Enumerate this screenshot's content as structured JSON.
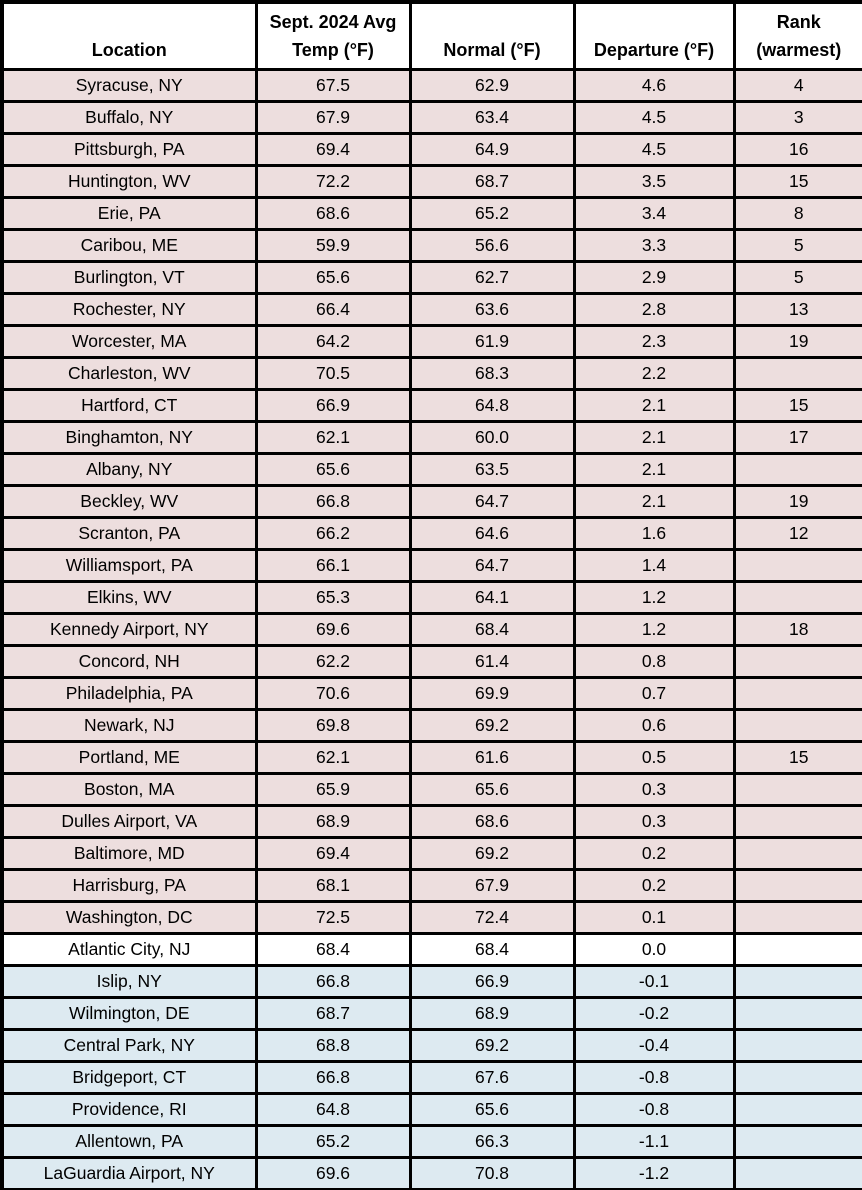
{
  "colors": {
    "warm_row_bg": "#EDDEDE",
    "neutral_row_bg": "#FFFFFF",
    "cool_row_bg": "#DDEAF1",
    "header_bg": "#FFFFFF",
    "border": "#000000",
    "text": "#000000"
  },
  "chart_data": {
    "type": "table",
    "header_labels": [
      "Location",
      "Sept. 2024 Avg\nTemp (°F)",
      "Normal (°F)",
      "Departure (°F)",
      "Rank\n(warmest)"
    ],
    "rows": [
      {
        "location": "Syracuse, NY",
        "avg_temp": "67.5",
        "normal": "62.9",
        "departure": "4.6",
        "rank": "4",
        "tone": "warm"
      },
      {
        "location": "Buffalo, NY",
        "avg_temp": "67.9",
        "normal": "63.4",
        "departure": "4.5",
        "rank": "3",
        "tone": "warm"
      },
      {
        "location": "Pittsburgh, PA",
        "avg_temp": "69.4",
        "normal": "64.9",
        "departure": "4.5",
        "rank": "16",
        "tone": "warm"
      },
      {
        "location": "Huntington, WV",
        "avg_temp": "72.2",
        "normal": "68.7",
        "departure": "3.5",
        "rank": "15",
        "tone": "warm"
      },
      {
        "location": "Erie, PA",
        "avg_temp": "68.6",
        "normal": "65.2",
        "departure": "3.4",
        "rank": "8",
        "tone": "warm"
      },
      {
        "location": "Caribou, ME",
        "avg_temp": "59.9",
        "normal": "56.6",
        "departure": "3.3",
        "rank": "5",
        "tone": "warm"
      },
      {
        "location": "Burlington, VT",
        "avg_temp": "65.6",
        "normal": "62.7",
        "departure": "2.9",
        "rank": "5",
        "tone": "warm"
      },
      {
        "location": "Rochester, NY",
        "avg_temp": "66.4",
        "normal": "63.6",
        "departure": "2.8",
        "rank": "13",
        "tone": "warm"
      },
      {
        "location": "Worcester, MA",
        "avg_temp": "64.2",
        "normal": "61.9",
        "departure": "2.3",
        "rank": "19",
        "tone": "warm"
      },
      {
        "location": "Charleston, WV",
        "avg_temp": "70.5",
        "normal": "68.3",
        "departure": "2.2",
        "rank": "",
        "tone": "warm"
      },
      {
        "location": "Hartford, CT",
        "avg_temp": "66.9",
        "normal": "64.8",
        "departure": "2.1",
        "rank": "15",
        "tone": "warm"
      },
      {
        "location": "Binghamton, NY",
        "avg_temp": "62.1",
        "normal": "60.0",
        "departure": "2.1",
        "rank": "17",
        "tone": "warm"
      },
      {
        "location": "Albany, NY",
        "avg_temp": "65.6",
        "normal": "63.5",
        "departure": "2.1",
        "rank": "",
        "tone": "warm"
      },
      {
        "location": "Beckley, WV",
        "avg_temp": "66.8",
        "normal": "64.7",
        "departure": "2.1",
        "rank": "19",
        "tone": "warm"
      },
      {
        "location": "Scranton, PA",
        "avg_temp": "66.2",
        "normal": "64.6",
        "departure": "1.6",
        "rank": "12",
        "tone": "warm"
      },
      {
        "location": "Williamsport, PA",
        "avg_temp": "66.1",
        "normal": "64.7",
        "departure": "1.4",
        "rank": "",
        "tone": "warm"
      },
      {
        "location": "Elkins, WV",
        "avg_temp": "65.3",
        "normal": "64.1",
        "departure": "1.2",
        "rank": "",
        "tone": "warm"
      },
      {
        "location": "Kennedy Airport, NY",
        "avg_temp": "69.6",
        "normal": "68.4",
        "departure": "1.2",
        "rank": "18",
        "tone": "warm"
      },
      {
        "location": "Concord, NH",
        "avg_temp": "62.2",
        "normal": "61.4",
        "departure": "0.8",
        "rank": "",
        "tone": "warm"
      },
      {
        "location": "Philadelphia, PA",
        "avg_temp": "70.6",
        "normal": "69.9",
        "departure": "0.7",
        "rank": "",
        "tone": "warm"
      },
      {
        "location": "Newark, NJ",
        "avg_temp": "69.8",
        "normal": "69.2",
        "departure": "0.6",
        "rank": "",
        "tone": "warm"
      },
      {
        "location": "Portland, ME",
        "avg_temp": "62.1",
        "normal": "61.6",
        "departure": "0.5",
        "rank": "15",
        "tone": "warm"
      },
      {
        "location": "Boston, MA",
        "avg_temp": "65.9",
        "normal": "65.6",
        "departure": "0.3",
        "rank": "",
        "tone": "warm"
      },
      {
        "location": "Dulles Airport, VA",
        "avg_temp": "68.9",
        "normal": "68.6",
        "departure": "0.3",
        "rank": "",
        "tone": "warm"
      },
      {
        "location": "Baltimore, MD",
        "avg_temp": "69.4",
        "normal": "69.2",
        "departure": "0.2",
        "rank": "",
        "tone": "warm"
      },
      {
        "location": "Harrisburg, PA",
        "avg_temp": "68.1",
        "normal": "67.9",
        "departure": "0.2",
        "rank": "",
        "tone": "warm"
      },
      {
        "location": "Washington, DC",
        "avg_temp": "72.5",
        "normal": "72.4",
        "departure": "0.1",
        "rank": "",
        "tone": "warm"
      },
      {
        "location": "Atlantic City, NJ",
        "avg_temp": "68.4",
        "normal": "68.4",
        "departure": "0.0",
        "rank": "",
        "tone": "neutral"
      },
      {
        "location": "Islip, NY",
        "avg_temp": "66.8",
        "normal": "66.9",
        "departure": "-0.1",
        "rank": "",
        "tone": "cool"
      },
      {
        "location": "Wilmington, DE",
        "avg_temp": "68.7",
        "normal": "68.9",
        "departure": "-0.2",
        "rank": "",
        "tone": "cool"
      },
      {
        "location": "Central Park, NY",
        "avg_temp": "68.8",
        "normal": "69.2",
        "departure": "-0.4",
        "rank": "",
        "tone": "cool"
      },
      {
        "location": "Bridgeport, CT",
        "avg_temp": "66.8",
        "normal": "67.6",
        "departure": "-0.8",
        "rank": "",
        "tone": "cool"
      },
      {
        "location": "Providence, RI",
        "avg_temp": "64.8",
        "normal": "65.6",
        "departure": "-0.8",
        "rank": "",
        "tone": "cool"
      },
      {
        "location": "Allentown, PA",
        "avg_temp": "65.2",
        "normal": "66.3",
        "departure": "-1.1",
        "rank": "",
        "tone": "cool"
      },
      {
        "location": "LaGuardia Airport, NY",
        "avg_temp": "69.6",
        "normal": "70.8",
        "departure": "-1.2",
        "rank": "",
        "tone": "cool"
      }
    ]
  }
}
